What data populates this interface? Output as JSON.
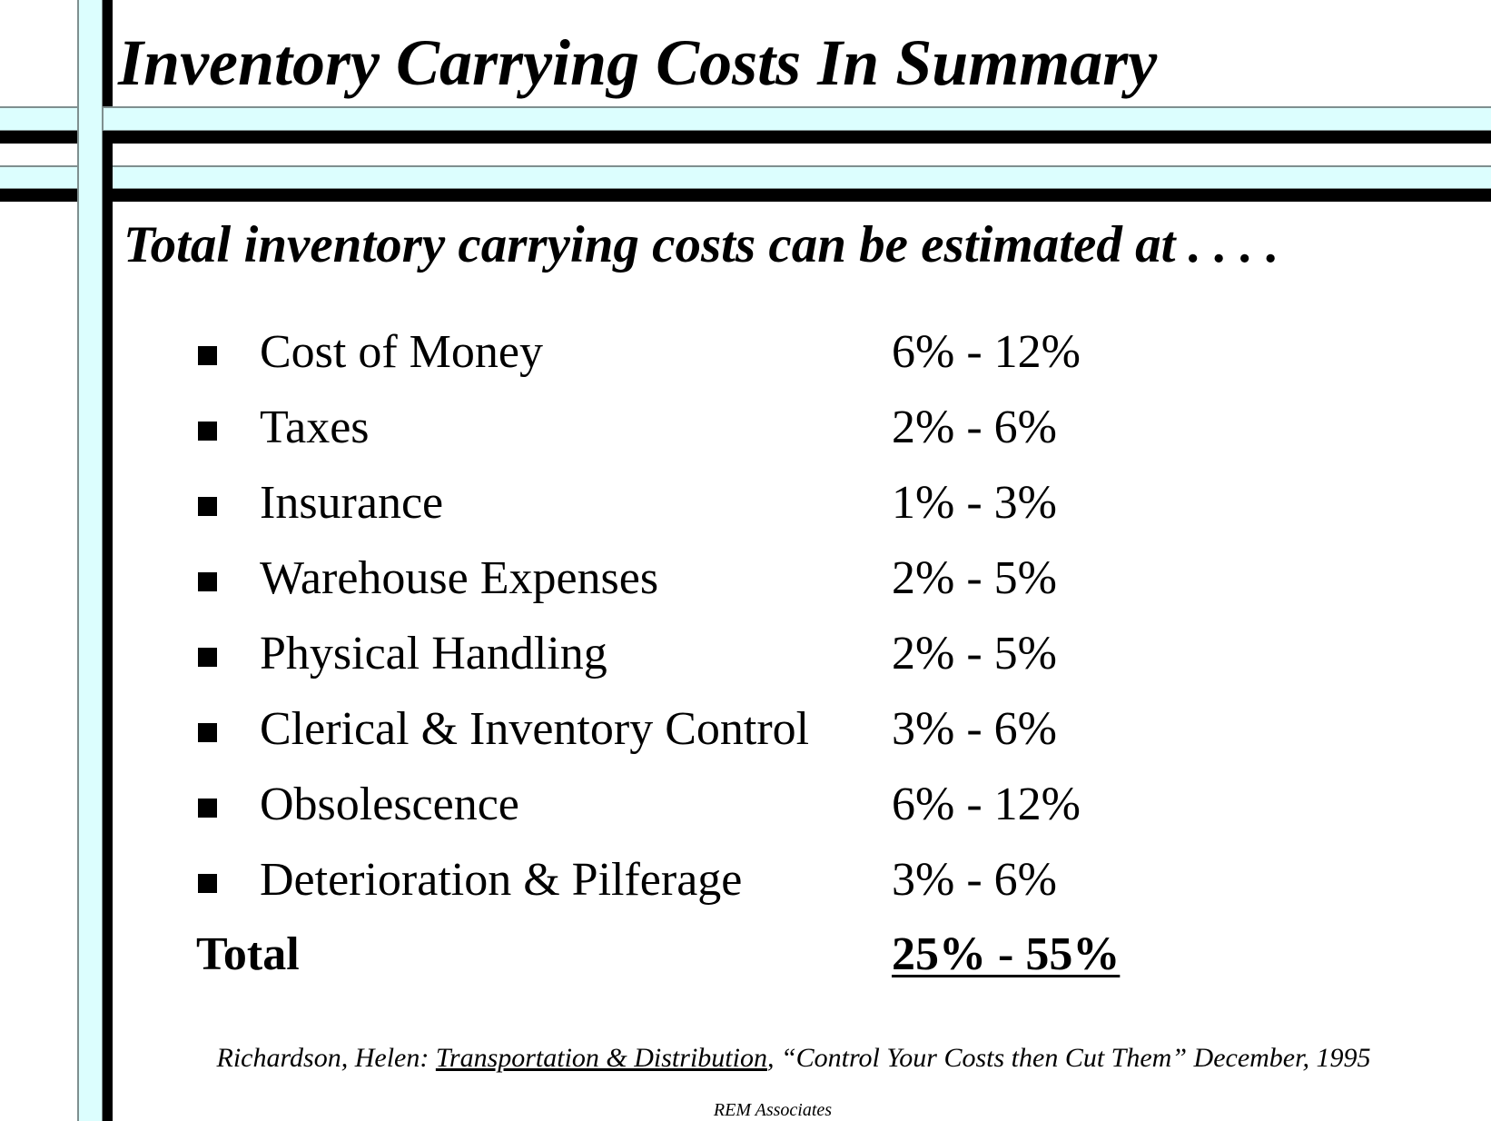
{
  "slide": {
    "title": "Inventory Carrying Costs In Summary",
    "subtitle": "Total inventory carrying costs can be estimated at . . . .",
    "items": [
      {
        "label": "Cost of Money",
        "range": "6% - 12%"
      },
      {
        "label": "Taxes",
        "range": "2% - 6%"
      },
      {
        "label": "Insurance",
        "range": "1% - 3%"
      },
      {
        "label": "Warehouse Expenses",
        "range": "2% - 5%"
      },
      {
        "label": "Physical Handling",
        "range": "2% - 5%"
      },
      {
        "label": "Clerical & Inventory Control",
        "range": "3% - 6%"
      },
      {
        "label": "Obsolescence",
        "range": "6% - 12%"
      },
      {
        "label": "Deterioration & Pilferage",
        "range": "3% - 6%"
      }
    ],
    "total": {
      "label": "Total",
      "range": "25% - 55%"
    },
    "citation": {
      "prefix": "Richardson, Helen:  ",
      "publication": "Transportation & Distribution",
      "suffix": ", “Control Your Costs then Cut Them” December, 1995"
    },
    "footer": "REM Associates"
  },
  "colors": {
    "frame_light": "#dcfefe",
    "frame_dark": "#000000",
    "frame_edge": "#7f8f8f"
  }
}
